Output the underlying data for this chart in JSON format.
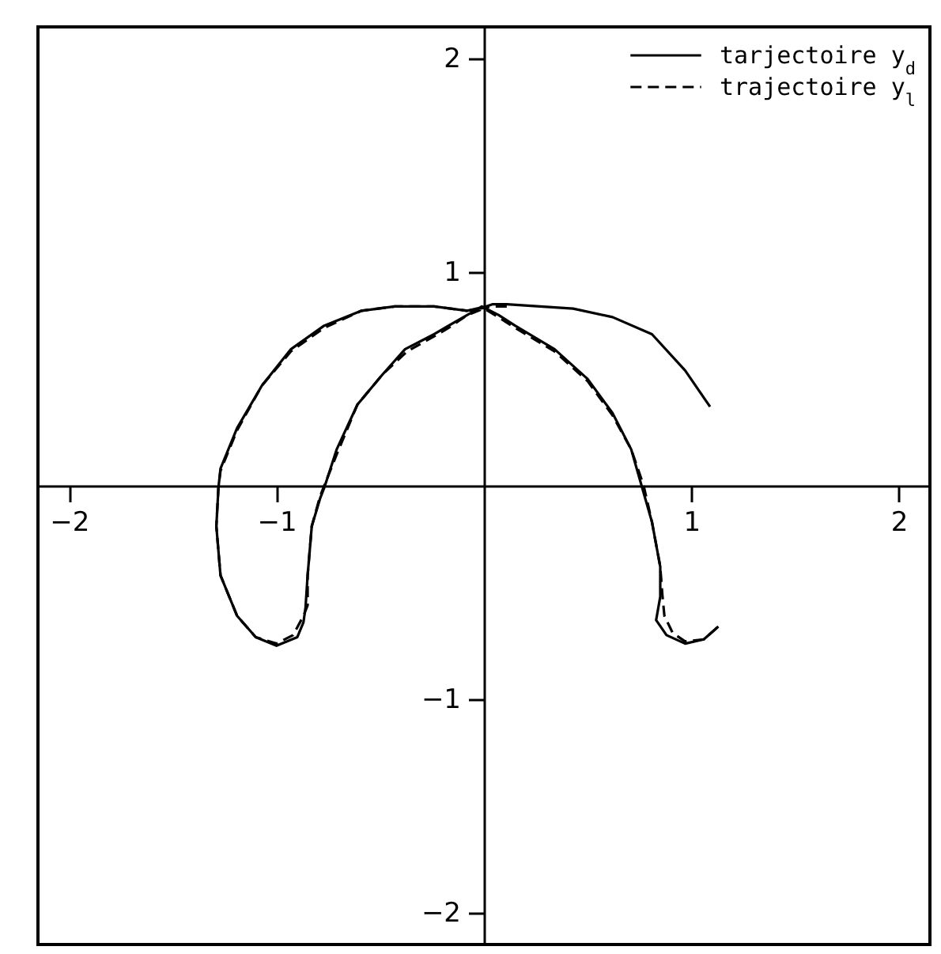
{
  "chart_data": {
    "type": "line",
    "legend": "top right",
    "xlim": [
      -2.15,
      2.15
    ],
    "ylim": [
      -2.15,
      2.15
    ],
    "xticks": [
      -2,
      -1,
      1,
      2
    ],
    "yticks": [
      -2,
      -1,
      1,
      2
    ],
    "series": [
      {
        "name": "tarjectoire y$_{d}$",
        "color": "#000000",
        "line_style": "solid",
        "x": [
          1.09,
          0.97,
          0.81,
          0.62,
          0.43,
          0.27,
          0.11,
          0.04,
          0.01,
          -0.08,
          -0.24,
          -0.43,
          -0.59,
          -0.77,
          -0.93,
          -1.07,
          -1.19,
          -1.27,
          -1.28,
          -1.29,
          -1.27,
          -1.19,
          -1.1,
          -1.0,
          -0.9,
          -0.87,
          -0.86,
          -0.85,
          -0.83,
          -0.79,
          -0.77,
          -0.71,
          -0.61,
          -0.49,
          -0.38,
          -0.24,
          -0.17,
          -0.08,
          -0.01,
          0.07,
          0.15,
          0.34,
          0.5,
          0.62,
          0.71,
          0.76,
          0.81,
          0.85,
          0.85,
          0.83,
          0.88,
          0.97,
          1.06,
          1.13
        ],
        "values": [
          0.37,
          0.54,
          0.71,
          0.79,
          0.83,
          0.84,
          0.85,
          0.85,
          0.84,
          0.82,
          0.84,
          0.84,
          0.82,
          0.75,
          0.64,
          0.47,
          0.27,
          0.08,
          -0.01,
          -0.19,
          -0.42,
          -0.61,
          -0.71,
          -0.75,
          -0.71,
          -0.64,
          -0.57,
          -0.42,
          -0.19,
          -0.06,
          -0.01,
          0.17,
          0.38,
          0.52,
          0.64,
          0.71,
          0.75,
          0.8,
          0.84,
          0.8,
          0.75,
          0.64,
          0.5,
          0.34,
          0.17,
          0.0,
          -0.17,
          -0.38,
          -0.52,
          -0.63,
          -0.7,
          -0.74,
          -0.72,
          -0.66
        ]
      },
      {
        "name": "trajectoire y$_{l}$",
        "color": "#000000",
        "line_style": "dashed",
        "x": [
          0.11,
          0.04,
          -0.08,
          -0.24,
          -0.43,
          -0.59,
          -0.77,
          -0.93,
          -1.07,
          -1.19,
          -1.27,
          -1.28,
          -1.29,
          -1.27,
          -1.19,
          -1.1,
          -1.0,
          -0.92,
          -0.87,
          -0.85,
          -0.85,
          -0.83,
          -0.79,
          -0.77,
          -0.7,
          -0.61,
          -0.49,
          -0.37,
          -0.24,
          -0.17,
          -0.08,
          0.0,
          0.07,
          0.15,
          0.34,
          0.5,
          0.62,
          0.71,
          0.77,
          0.81,
          0.85,
          0.86,
          0.87,
          0.91,
          0.97,
          1.06,
          1.13
        ],
        "values": [
          0.84,
          0.84,
          0.82,
          0.84,
          0.84,
          0.82,
          0.74,
          0.63,
          0.47,
          0.26,
          0.07,
          -0.01,
          -0.19,
          -0.42,
          -0.61,
          -0.71,
          -0.74,
          -0.7,
          -0.61,
          -0.56,
          -0.42,
          -0.19,
          -0.05,
          0.0,
          0.17,
          0.38,
          0.52,
          0.63,
          0.7,
          0.74,
          0.8,
          0.83,
          0.79,
          0.74,
          0.63,
          0.49,
          0.33,
          0.17,
          0.0,
          -0.17,
          -0.38,
          -0.51,
          -0.61,
          -0.69,
          -0.73,
          -0.72,
          -0.66
        ]
      }
    ]
  }
}
